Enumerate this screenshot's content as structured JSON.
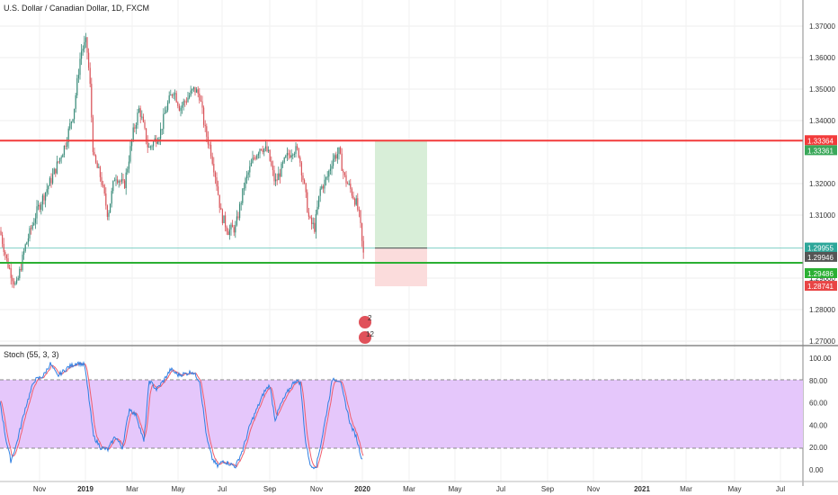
{
  "header": {
    "title": "U.S. Dollar / Canadian Dollar, 1D, FXCM"
  },
  "oscillator": {
    "title": "Stoch (55, 3, 3)",
    "band_upper": 80,
    "band_lower": 20
  },
  "colors": {
    "up_candle": "#3a8b7a",
    "down_candle": "#d9545a",
    "red_line": "#f23b3b",
    "green_line": "#2bb033",
    "target_zone": "#d8eed8",
    "stop_zone": "#fbdcdc",
    "stoch_band": "#e5c7fb",
    "k_line": "#2f7fe2",
    "d_line": "#f05d6c"
  },
  "chart_data": [
    {
      "type": "candlestick",
      "symbol": "U.S. Dollar / Canadian Dollar",
      "timeframe": "1D",
      "source": "FXCM",
      "x_ticks": [
        "Nov",
        "2019",
        "Mar",
        "May",
        "Jul",
        "Sep",
        "Nov",
        "2020",
        "Mar",
        "May",
        "Jul",
        "Sep",
        "Nov",
        "2021",
        "Mar",
        "May",
        "Jul"
      ],
      "y_ticks": [
        "1.37000",
        "1.36000",
        "1.35000",
        "1.34000",
        "1.32000",
        "1.31000",
        "1.29000",
        "1.28000",
        "1.27000"
      ],
      "ylim": [
        1.27,
        1.374
      ],
      "price_path": [
        [
          0,
          1.305
        ],
        [
          8,
          1.295
        ],
        [
          18,
          1.287
        ],
        [
          28,
          1.3
        ],
        [
          42,
          1.312
        ],
        [
          58,
          1.322
        ],
        [
          72,
          1.332
        ],
        [
          82,
          1.343
        ],
        [
          90,
          1.362
        ],
        [
          96,
          1.365
        ],
        [
          100,
          1.352
        ],
        [
          104,
          1.328
        ],
        [
          112,
          1.322
        ],
        [
          120,
          1.31
        ],
        [
          128,
          1.323
        ],
        [
          138,
          1.319
        ],
        [
          148,
          1.336
        ],
        [
          155,
          1.344
        ],
        [
          165,
          1.331
        ],
        [
          178,
          1.336
        ],
        [
          185,
          1.344
        ],
        [
          193,
          1.35
        ],
        [
          200,
          1.344
        ],
        [
          208,
          1.347
        ],
        [
          216,
          1.35
        ],
        [
          222,
          1.348
        ],
        [
          228,
          1.337
        ],
        [
          234,
          1.331
        ],
        [
          240,
          1.322
        ],
        [
          246,
          1.31
        ],
        [
          254,
          1.305
        ],
        [
          262,
          1.306
        ],
        [
          272,
          1.32
        ],
        [
          282,
          1.328
        ],
        [
          290,
          1.332
        ],
        [
          298,
          1.33
        ],
        [
          306,
          1.32
        ],
        [
          312,
          1.324
        ],
        [
          318,
          1.328
        ],
        [
          326,
          1.331
        ],
        [
          332,
          1.33
        ],
        [
          338,
          1.32
        ],
        [
          344,
          1.308
        ],
        [
          350,
          1.306
        ],
        [
          356,
          1.318
        ],
        [
          364,
          1.322
        ],
        [
          370,
          1.328
        ],
        [
          377,
          1.33
        ],
        [
          383,
          1.322
        ],
        [
          390,
          1.318
        ],
        [
          396,
          1.314
        ],
        [
          400,
          1.309
        ],
        [
          404,
          1.297
        ],
        [
          405,
          1.2994
        ]
      ],
      "last_price": 1.29946,
      "levels": [
        {
          "label": "1.33364",
          "value": 1.33364,
          "color": "#f23b3b",
          "kind": "resistance line"
        },
        {
          "label": "1.29486",
          "value": 1.29486,
          "color": "#2bb033",
          "kind": "support line"
        }
      ],
      "position_tool": {
        "entry": {
          "label": "1.29955",
          "value": 1.29955
        },
        "target": {
          "label": "1.33361",
          "value": 1.33361
        },
        "stop": {
          "label": "1.28741",
          "value": 1.28741
        }
      },
      "price_tags": [
        "1.33364",
        "1.33361",
        "1.29955",
        "1.29946",
        "1.29486",
        "1.28741"
      ],
      "event_markers": [
        {
          "label": "2"
        },
        {
          "label": "12"
        }
      ]
    },
    {
      "type": "line",
      "title": "Stoch (55, 3, 3)",
      "y_ticks": [
        "100.00",
        "80.00",
        "60.00",
        "40.00",
        "20.00",
        "0.00"
      ],
      "ylim": [
        -7,
        106
      ],
      "bands": {
        "upper": 80,
        "lower": 20
      },
      "k_path": [
        [
          0,
          62
        ],
        [
          6,
          30
        ],
        [
          12,
          8
        ],
        [
          18,
          22
        ],
        [
          28,
          55
        ],
        [
          38,
          80
        ],
        [
          48,
          84
        ],
        [
          56,
          95
        ],
        [
          64,
          84
        ],
        [
          76,
          92
        ],
        [
          86,
          96
        ],
        [
          94,
          94
        ],
        [
          98,
          70
        ],
        [
          104,
          30
        ],
        [
          112,
          20
        ],
        [
          120,
          18
        ],
        [
          128,
          30
        ],
        [
          136,
          20
        ],
        [
          144,
          55
        ],
        [
          152,
          48
        ],
        [
          160,
          25
        ],
        [
          166,
          80
        ],
        [
          174,
          72
        ],
        [
          182,
          80
        ],
        [
          190,
          90
        ],
        [
          198,
          85
        ],
        [
          206,
          86
        ],
        [
          214,
          88
        ],
        [
          222,
          80
        ],
        [
          230,
          28
        ],
        [
          236,
          10
        ],
        [
          242,
          3
        ],
        [
          248,
          8
        ],
        [
          254,
          6
        ],
        [
          262,
          3
        ],
        [
          270,
          18
        ],
        [
          278,
          40
        ],
        [
          286,
          55
        ],
        [
          294,
          70
        ],
        [
          300,
          76
        ],
        [
          306,
          45
        ],
        [
          312,
          58
        ],
        [
          320,
          70
        ],
        [
          328,
          80
        ],
        [
          334,
          78
        ],
        [
          340,
          24
        ],
        [
          346,
          2
        ],
        [
          352,
          4
        ],
        [
          358,
          28
        ],
        [
          364,
          55
        ],
        [
          370,
          82
        ],
        [
          378,
          80
        ],
        [
          384,
          60
        ],
        [
          390,
          40
        ],
        [
          396,
          30
        ],
        [
          403,
          8
        ]
      ]
    }
  ]
}
